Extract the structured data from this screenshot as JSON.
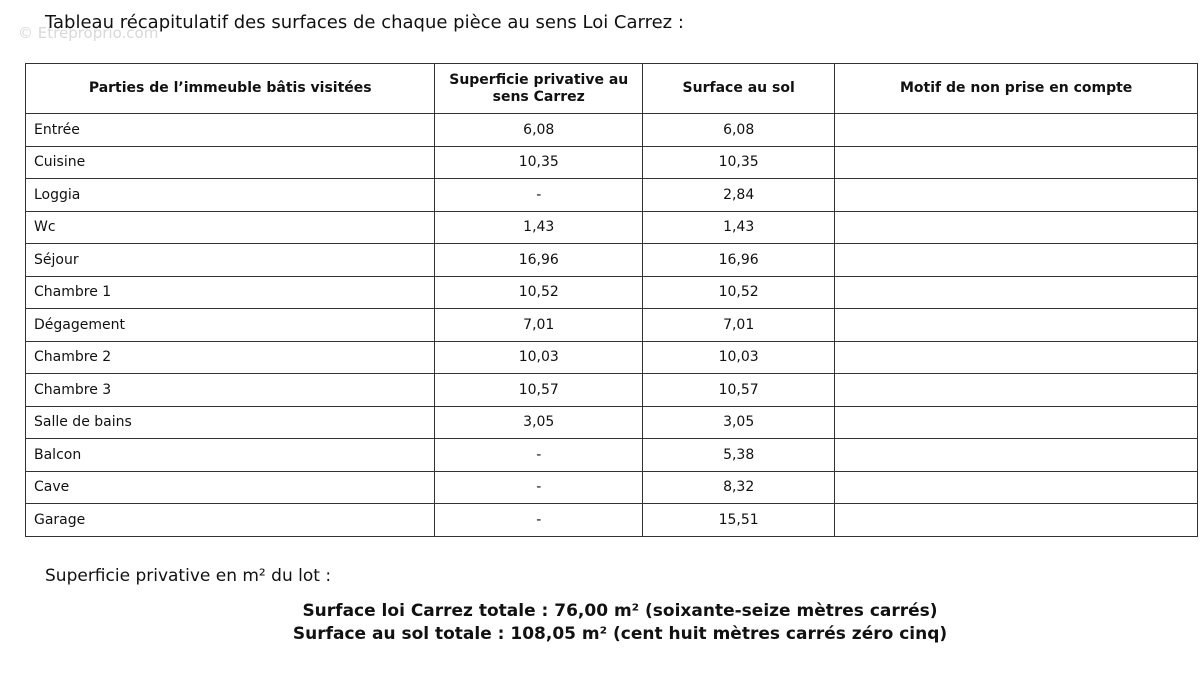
{
  "watermark": "© Etreproprio.com",
  "header": {
    "title": "Tableau récapitulatif des surfaces de chaque pièce au sens Loi Carrez :"
  },
  "table": {
    "columns": [
      "Parties de l’immeuble bâtis visitées",
      "Superficie privative au sens Carrez",
      "Surface au sol",
      "Motif de non prise en compte"
    ],
    "rows": [
      [
        "Entrée",
        "6,08",
        "6,08"
      ],
      [
        "Cuisine",
        "10,35",
        "10,35"
      ],
      [
        "Loggia",
        "-",
        "2,84"
      ],
      [
        "Wc",
        "1,43",
        "1,43"
      ],
      [
        "Séjour",
        "16,96",
        "16,96"
      ],
      [
        "Chambre 1",
        "10,52",
        "10,52"
      ],
      [
        "Dégagement",
        "7,01",
        "7,01"
      ],
      [
        "Chambre 2",
        "10,03",
        "10,03"
      ],
      [
        "Chambre 3",
        "10,57",
        "10,57"
      ],
      [
        "Salle de bains",
        "3,05",
        "3,05"
      ],
      [
        "Balcon",
        "-",
        "5,38"
      ],
      [
        "Cave",
        "-",
        "8,32"
      ],
      [
        "Garage",
        "-",
        "15,51"
      ]
    ]
  },
  "summary": {
    "label": "Superficie privative en m² du lot :",
    "totals": [
      "Surface loi Carrez totale : 76,00 m² (soixante-seize mètres carrés)",
      "Surface au sol totale : 108,05 m² (cent huit mètres carrés zéro cinq)"
    ]
  }
}
